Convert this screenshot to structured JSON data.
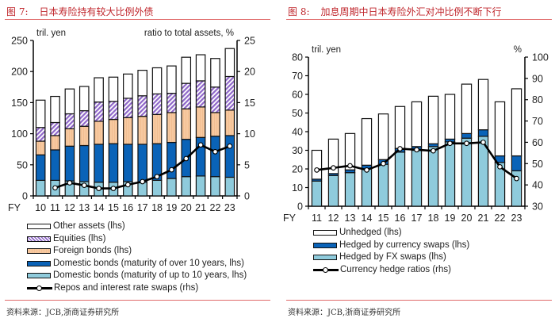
{
  "figures": [
    {
      "label": "图 7:",
      "title": "日本寿险持有较大比例外债",
      "source": "资料来源：JCB,浙商证券研究所"
    },
    {
      "label": "图 8:",
      "title": "加息周期中日本寿险外汇对冲比例不断下行",
      "source": "资料来源：JCB,浙商证券研究所"
    }
  ],
  "colors": {
    "title_red": "#c0272d",
    "other": "#ffffff",
    "equities": "#8f67c9",
    "foreign_bonds": "#f7c9a0",
    "domestic_long": "#0a63b8",
    "domestic_short": "#8fcbdc",
    "unhedged": "#ffffff",
    "currency_swaps": "#0a63b8",
    "fx_swaps": "#8fcbdc",
    "line": "#000000"
  },
  "chart_data": [
    {
      "type": "bar",
      "stacked": true,
      "title": "日本寿险持有较大比例外债",
      "xlabel_prefix": "FY",
      "categories": [
        "10",
        "11",
        "12",
        "13",
        "14",
        "15",
        "16",
        "17",
        "18",
        "19",
        "20",
        "21",
        "22",
        "23"
      ],
      "ylabel_left": "tril. yen",
      "ylabel_right": "ratio to total assets, %",
      "ylim_left": [
        0,
        250
      ],
      "yticks_left": [
        0,
        50,
        100,
        150,
        200,
        250
      ],
      "ylim_right": [
        0,
        25
      ],
      "yticks_right": [
        0,
        5,
        10,
        15,
        20,
        25
      ],
      "series": [
        {
          "name": "Domestic bonds (maturity of up to 10 years, lhs)",
          "key": "domestic_short",
          "axis": "left",
          "values": [
            25,
            25,
            24,
            23,
            22,
            22,
            23,
            22,
            25,
            28,
            31,
            32,
            31,
            30
          ]
        },
        {
          "name": "Domestic bonds (maturity of over 10 years, lhs)",
          "key": "domestic_long",
          "axis": "left",
          "values": [
            41,
            49,
            56,
            58,
            61,
            62,
            60,
            61,
            59,
            58,
            60,
            62,
            65,
            67
          ]
        },
        {
          "name": "Foreign bonds (lhs)",
          "key": "foreign_bonds",
          "axis": "left",
          "values": [
            22,
            23,
            28,
            31,
            37,
            39,
            43,
            45,
            47,
            48,
            49,
            49,
            38,
            41
          ]
        },
        {
          "name": "Equities (lhs)",
          "key": "equities",
          "axis": "left",
          "values": [
            22,
            21,
            24,
            25,
            31,
            29,
            31,
            33,
            33,
            31,
            41,
            42,
            41,
            54
          ]
        },
        {
          "name": "Other assets (lhs)",
          "key": "other",
          "axis": "left",
          "values": [
            44,
            42,
            40,
            39,
            39,
            39,
            39,
            41,
            42,
            44,
            42,
            42,
            46,
            45
          ]
        },
        {
          "name": "Repos and interest rate swaps (rhs)",
          "key": "line",
          "axis": "right",
          "type": "line",
          "values": [
            null,
            1.3,
            2.1,
            1.7,
            1.2,
            1.2,
            1.8,
            2.3,
            3.1,
            4.2,
            6.0,
            8.2,
            7.1,
            8.0
          ]
        }
      ],
      "legend": {
        "placement": "bottom",
        "items": [
          {
            "label": "Other assets (lhs)",
            "key": "other",
            "kind": "box"
          },
          {
            "label": "Equities (lhs)",
            "key": "equities",
            "kind": "hatch"
          },
          {
            "label": "Foreign bonds (lhs)",
            "key": "foreign_bonds",
            "kind": "box"
          },
          {
            "label": "Domestic bonds (maturity of over 10 years, lhs)",
            "key": "domestic_long",
            "kind": "box"
          },
          {
            "label": "Domestic bonds (maturity of up to 10 years, lhs)",
            "key": "domestic_short",
            "kind": "box"
          },
          {
            "label": "Repos and interest rate swaps (rhs)",
            "key": "line",
            "kind": "line"
          }
        ]
      },
      "grid": false
    },
    {
      "type": "bar",
      "stacked": true,
      "title": "加息周期中日本寿险外汇对冲比例不断下行",
      "xlabel_prefix": "FY",
      "categories": [
        "11",
        "12",
        "13",
        "14",
        "15",
        "16",
        "17",
        "18",
        "19",
        "20",
        "21",
        "22",
        "23"
      ],
      "ylabel_left": "tril. yen",
      "ylabel_right": "%",
      "ylim_left": [
        0,
        80
      ],
      "yticks_left": [
        0,
        10,
        20,
        30,
        40,
        50,
        60,
        70,
        80
      ],
      "ylim_right": [
        30,
        100
      ],
      "yticks_right": [
        30,
        40,
        50,
        60,
        70,
        80,
        90,
        100
      ],
      "series": [
        {
          "name": "Hedged by FX swaps (lhs)",
          "key": "fx_swaps",
          "axis": "left",
          "values": [
            13.5,
            16.5,
            18,
            20,
            22.5,
            29,
            30,
            32,
            34.5,
            36.5,
            37.5,
            23.5,
            19
          ]
        },
        {
          "name": "Hedged by currency swaps (lhs)",
          "key": "currency_swaps",
          "axis": "left",
          "values": [
            1,
            1,
            1.5,
            2,
            2.5,
            2,
            2,
            1.5,
            1.5,
            2.5,
            3.5,
            3.5,
            8
          ]
        },
        {
          "name": "Unhedged (lhs)",
          "key": "unhedged",
          "axis": "left",
          "values": [
            15.5,
            18.5,
            19.5,
            25,
            24.5,
            22.5,
            24,
            25.5,
            24,
            26.5,
            27,
            29,
            36
          ]
        },
        {
          "name": "Currency hedge ratios (rhs)",
          "key": "line",
          "axis": "right",
          "type": "line",
          "values": [
            47,
            48,
            49,
            47,
            50,
            57,
            56.5,
            56,
            59.5,
            59.5,
            60,
            48.5,
            43
          ]
        }
      ],
      "legend": {
        "placement": "bottom",
        "items": [
          {
            "label": "Unhedged (lhs)",
            "key": "unhedged",
            "kind": "box"
          },
          {
            "label": "Hedged by currency swaps (lhs)",
            "key": "currency_swaps",
            "kind": "box"
          },
          {
            "label": "Hedged by FX swaps (lhs)",
            "key": "fx_swaps",
            "kind": "box"
          },
          {
            "label": "Currency hedge ratios (rhs)",
            "key": "line",
            "kind": "line"
          }
        ]
      },
      "grid": false
    }
  ]
}
